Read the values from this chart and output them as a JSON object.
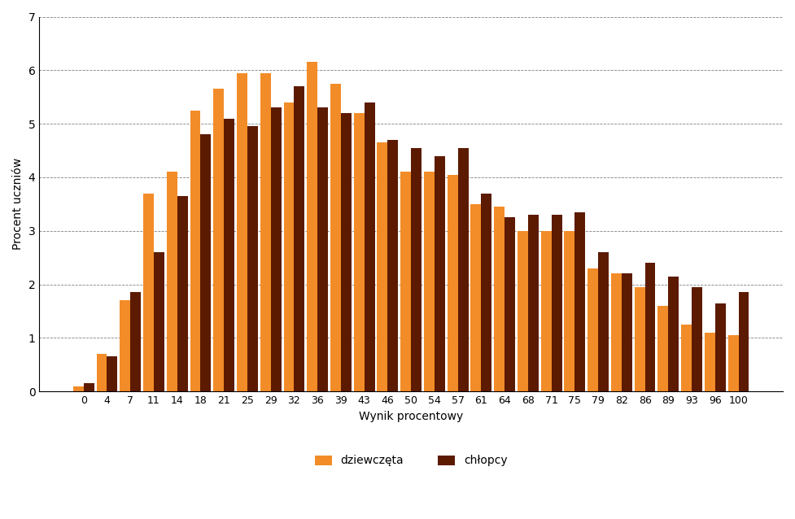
{
  "categories": [
    0,
    4,
    7,
    11,
    14,
    18,
    21,
    25,
    29,
    32,
    36,
    39,
    43,
    46,
    50,
    54,
    57,
    61,
    64,
    68,
    71,
    75,
    79,
    82,
    86,
    89,
    93,
    96,
    100
  ],
  "dziewczeta": [
    0.1,
    0.7,
    1.7,
    3.7,
    4.1,
    5.25,
    5.65,
    5.95,
    5.95,
    5.4,
    6.15,
    5.75,
    5.2,
    4.65,
    4.1,
    4.1,
    4.05,
    3.5,
    3.45,
    3.0,
    3.0,
    3.0,
    2.3,
    2.2,
    1.95,
    1.6,
    1.25,
    1.1,
    1.05
  ],
  "chlopcy": [
    0.15,
    0.65,
    1.85,
    2.6,
    3.65,
    4.8,
    5.1,
    4.95,
    5.3,
    5.7,
    5.3,
    5.2,
    5.4,
    4.7,
    4.55,
    4.4,
    4.55,
    3.7,
    3.25,
    3.3,
    3.3,
    3.35,
    2.6,
    2.2,
    2.4,
    2.15,
    1.95,
    1.65,
    1.85
  ],
  "bar_color_dziewczeta": "#F28C28",
  "bar_color_chlopcy": "#5C1A00",
  "ylabel": "Procent uczniów",
  "xlabel": "Wynik procentowy",
  "ylim": [
    0,
    7
  ],
  "yticks": [
    0,
    1,
    2,
    3,
    4,
    5,
    6,
    7
  ],
  "legend_dziewczeta": "dziewczęta",
  "legend_chlopcy": "chłopcy",
  "bar_width": 0.45,
  "background_color": "#ffffff"
}
